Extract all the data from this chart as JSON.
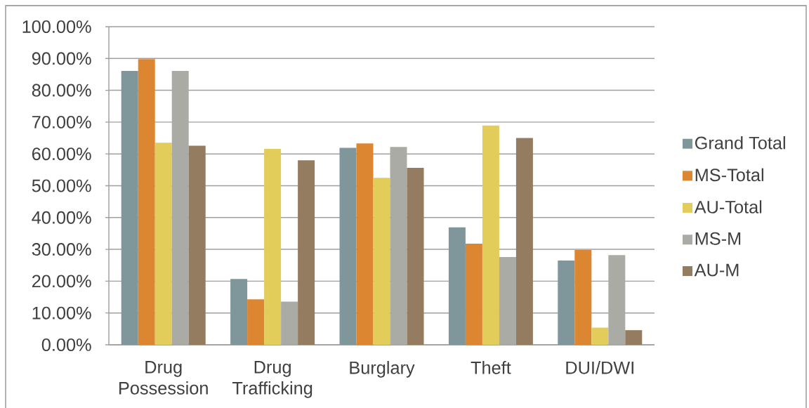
{
  "chart_data": {
    "type": "bar",
    "categories": [
      "Drug Possession",
      "Drug Trafficking",
      "Burglary",
      "Theft",
      "DUI/DWI"
    ],
    "series": [
      {
        "name": "Grand Total",
        "color": "#7f969b",
        "values": [
          86.1,
          20.7,
          61.9,
          36.9,
          26.5
        ]
      },
      {
        "name": "MS-Total",
        "color": "#dc8632",
        "values": [
          89.8,
          14.3,
          63.3,
          31.8,
          29.8
        ]
      },
      {
        "name": "AU-Total",
        "color": "#e2cc5a",
        "values": [
          63.5,
          61.6,
          52.5,
          68.9,
          5.4
        ]
      },
      {
        "name": "MS-M",
        "color": "#ababa6",
        "values": [
          86.1,
          13.6,
          62.2,
          27.6,
          28.2
        ]
      },
      {
        "name": "AU-M",
        "color": "#937c60",
        "values": [
          62.6,
          58.0,
          55.6,
          65.0,
          4.6
        ]
      }
    ],
    "ylim": [
      0,
      100
    ],
    "yticks": [
      {
        "value": 0,
        "label": "0.00%"
      },
      {
        "value": 10,
        "label": "10.00%"
      },
      {
        "value": 20,
        "label": "20.00%"
      },
      {
        "value": 30,
        "label": "30.00%"
      },
      {
        "value": 40,
        "label": "40.00%"
      },
      {
        "value": 50,
        "label": "50.00%"
      },
      {
        "value": 60,
        "label": "60.00%"
      },
      {
        "value": 70,
        "label": "70.00%"
      },
      {
        "value": 80,
        "label": "80.00%"
      },
      {
        "value": 90,
        "label": "90.00%"
      },
      {
        "value": 100,
        "label": "100.00%"
      }
    ],
    "grid": "y",
    "legend": "right"
  }
}
